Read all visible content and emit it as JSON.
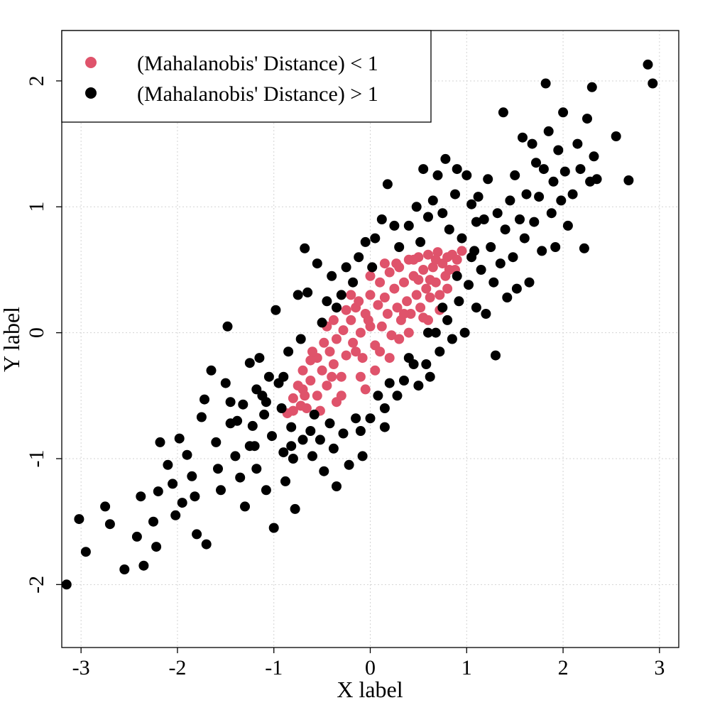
{
  "chart_data": {
    "type": "scatter",
    "xlabel": "X label",
    "ylabel": "Y label",
    "xlim": [
      -3.2,
      3.2
    ],
    "ylim": [
      -2.5,
      2.4
    ],
    "xticks": [
      -3,
      -2,
      -1,
      0,
      1,
      2,
      3
    ],
    "yticks": [
      -2,
      -1,
      0,
      1,
      2
    ],
    "xtick_labels": [
      "-3",
      "-2",
      "-1",
      "0",
      "1",
      "2",
      "3"
    ],
    "ytick_labels": [
      "-2",
      "-1",
      "0",
      "1",
      "2"
    ],
    "grid": true,
    "legend_position": "top-left",
    "correlation": 0.85,
    "threshold": 1,
    "series": [
      {
        "name": "(Mahalanobis' Distance) < 1",
        "color": "#DF536B",
        "points": [
          [
            -0.86,
            -0.64
          ],
          [
            -0.8,
            -0.52
          ],
          [
            -0.72,
            -0.58
          ],
          [
            -0.7,
            -0.45
          ],
          [
            -0.62,
            -0.38
          ],
          [
            -0.66,
            -0.6
          ],
          [
            -0.55,
            -0.5
          ],
          [
            -0.5,
            -0.3
          ],
          [
            -0.55,
            -0.2
          ],
          [
            -0.45,
            -0.42
          ],
          [
            -0.42,
            -0.15
          ],
          [
            -0.38,
            -0.25
          ],
          [
            -0.35,
            -0.05
          ],
          [
            -0.3,
            -0.35
          ],
          [
            -0.28,
            0.02
          ],
          [
            -0.25,
            -0.18
          ],
          [
            -0.2,
            0.1
          ],
          [
            -0.18,
            -0.08
          ],
          [
            -0.15,
            0.2
          ],
          [
            -0.1,
            0.0
          ],
          [
            -0.08,
            -0.2
          ],
          [
            -0.05,
            0.15
          ],
          [
            0.0,
            0.05
          ],
          [
            0.0,
            0.3
          ],
          [
            0.05,
            -0.1
          ],
          [
            0.08,
            0.22
          ],
          [
            0.1,
            0.4
          ],
          [
            0.12,
            0.05
          ],
          [
            0.15,
            0.28
          ],
          [
            0.18,
            0.15
          ],
          [
            0.2,
            0.48
          ],
          [
            0.22,
            -0.02
          ],
          [
            0.25,
            0.35
          ],
          [
            0.28,
            0.2
          ],
          [
            0.3,
            0.52
          ],
          [
            0.32,
            0.1
          ],
          [
            0.35,
            0.4
          ],
          [
            0.38,
            0.25
          ],
          [
            0.4,
            0.58
          ],
          [
            0.42,
            0.15
          ],
          [
            0.45,
            0.45
          ],
          [
            0.48,
            0.3
          ],
          [
            0.5,
            0.6
          ],
          [
            0.52,
            0.2
          ],
          [
            0.55,
            0.5
          ],
          [
            0.58,
            0.35
          ],
          [
            0.6,
            0.62
          ],
          [
            0.62,
            0.28
          ],
          [
            0.65,
            0.52
          ],
          [
            0.68,
            0.4
          ],
          [
            0.7,
            0.64
          ],
          [
            0.72,
            0.3
          ],
          [
            0.75,
            0.55
          ],
          [
            0.78,
            0.45
          ],
          [
            0.8,
            0.6
          ],
          [
            0.82,
            0.5
          ],
          [
            0.85,
            0.62
          ],
          [
            0.9,
            0.58
          ],
          [
            0.95,
            0.65
          ],
          [
            0.72,
            0.18
          ],
          [
            0.6,
            0.1
          ],
          [
            -0.62,
            -0.22
          ],
          [
            -0.7,
            -0.3
          ],
          [
            -0.75,
            -0.42
          ],
          [
            -0.3,
            -0.5
          ],
          [
            -0.1,
            -0.35
          ],
          [
            0.05,
            -0.3
          ],
          [
            0.2,
            -0.2
          ],
          [
            0.4,
            0.0
          ],
          [
            -0.45,
            0.05
          ],
          [
            -0.2,
            0.3
          ],
          [
            0.0,
            0.45
          ],
          [
            0.15,
            0.55
          ],
          [
            -0.6,
            -0.15
          ],
          [
            -0.35,
            -0.55
          ],
          [
            -0.52,
            -0.62
          ],
          [
            -0.25,
            0.18
          ],
          [
            0.3,
            -0.05
          ],
          [
            0.55,
            0.12
          ],
          [
            0.62,
            0.42
          ],
          [
            -0.12,
            0.25
          ],
          [
            -0.38,
            0.1
          ],
          [
            -0.05,
            -0.45
          ],
          [
            0.1,
            -0.15
          ],
          [
            0.27,
            0.55
          ],
          [
            0.45,
            0.58
          ],
          [
            0.5,
            0.42
          ],
          [
            -0.15,
            -0.15
          ],
          [
            -0.48,
            -0.08
          ],
          [
            -0.68,
            -0.5
          ],
          [
            -0.8,
            -0.62
          ],
          [
            -0.4,
            -0.35
          ],
          [
            -0.02,
            0.1
          ],
          [
            0.35,
            0.15
          ],
          [
            0.68,
            0.58
          ],
          [
            0.8,
            0.35
          ],
          [
            0.88,
            0.5
          ]
        ]
      },
      {
        "name": "(Mahalanobis' Distance) > 1",
        "color": "#000000",
        "points": [
          [
            -3.15,
            -2.0
          ],
          [
            -3.02,
            -1.48
          ],
          [
            -2.95,
            -1.74
          ],
          [
            -2.75,
            -1.38
          ],
          [
            -2.7,
            -1.52
          ],
          [
            -2.55,
            -1.88
          ],
          [
            -2.42,
            -1.62
          ],
          [
            -2.38,
            -1.3
          ],
          [
            -2.35,
            -1.85
          ],
          [
            -2.25,
            -1.5
          ],
          [
            -2.2,
            -1.26
          ],
          [
            -2.22,
            -1.7
          ],
          [
            -2.18,
            -0.87
          ],
          [
            -2.1,
            -1.05
          ],
          [
            -2.02,
            -1.45
          ],
          [
            -1.98,
            -0.84
          ],
          [
            -1.9,
            -0.97
          ],
          [
            -1.85,
            -1.14
          ],
          [
            -1.82,
            -1.3
          ],
          [
            -1.8,
            -1.6
          ],
          [
            -1.75,
            -0.67
          ],
          [
            -1.72,
            -0.53
          ],
          [
            -1.7,
            -1.68
          ],
          [
            -1.65,
            -0.3
          ],
          [
            -1.6,
            -0.87
          ],
          [
            -1.58,
            -1.08
          ],
          [
            -1.55,
            -1.25
          ],
          [
            -1.5,
            -0.4
          ],
          [
            -1.48,
            0.05
          ],
          [
            -1.45,
            -0.72
          ],
          [
            -1.4,
            -0.98
          ],
          [
            -1.35,
            -1.15
          ],
          [
            -1.32,
            -0.57
          ],
          [
            -1.3,
            -1.38
          ],
          [
            -1.25,
            -0.24
          ],
          [
            -1.22,
            -0.74
          ],
          [
            -1.2,
            -0.9
          ],
          [
            -1.18,
            -1.08
          ],
          [
            -1.15,
            -0.2
          ],
          [
            -1.12,
            -0.5
          ],
          [
            -1.1,
            -0.65
          ],
          [
            -1.08,
            -1.25
          ],
          [
            -1.05,
            -0.35
          ],
          [
            -1.02,
            -0.82
          ],
          [
            -1.0,
            -1.55
          ],
          [
            -0.98,
            0.18
          ],
          [
            -0.95,
            -0.4
          ],
          [
            -0.92,
            -0.6
          ],
          [
            -0.9,
            -0.95
          ],
          [
            -0.88,
            -1.18
          ],
          [
            -0.85,
            -0.15
          ],
          [
            -0.82,
            -0.75
          ],
          [
            -0.8,
            -1.0
          ],
          [
            -0.78,
            -1.4
          ],
          [
            -0.75,
            0.3
          ],
          [
            -0.72,
            -0.05
          ],
          [
            -0.7,
            -0.85
          ],
          [
            -0.68,
            0.67
          ],
          [
            -0.65,
            0.32
          ],
          [
            -0.62,
            -0.78
          ],
          [
            -0.6,
            -0.98
          ],
          [
            -0.55,
            0.55
          ],
          [
            -0.52,
            -0.85
          ],
          [
            -0.5,
            0.08
          ],
          [
            -0.48,
            -1.1
          ],
          [
            -0.45,
            0.25
          ],
          [
            -0.42,
            -0.72
          ],
          [
            -0.4,
            0.45
          ],
          [
            -0.38,
            -0.92
          ],
          [
            -0.35,
            -1.22
          ],
          [
            -0.3,
            0.3
          ],
          [
            -0.28,
            -0.8
          ],
          [
            -0.25,
            0.52
          ],
          [
            -0.22,
            -1.05
          ],
          [
            -0.18,
            0.4
          ],
          [
            -0.15,
            -0.68
          ],
          [
            -0.12,
            0.6
          ],
          [
            -0.08,
            -0.98
          ],
          [
            -0.05,
            0.72
          ],
          [
            0.0,
            -0.68
          ],
          [
            0.02,
            0.52
          ],
          [
            0.05,
            0.75
          ],
          [
            0.08,
            -0.5
          ],
          [
            0.12,
            0.9
          ],
          [
            0.15,
            -0.6
          ],
          [
            0.18,
            1.18
          ],
          [
            0.2,
            -0.4
          ],
          [
            0.25,
            0.85
          ],
          [
            0.3,
            0.68
          ],
          [
            0.35,
            -0.38
          ],
          [
            0.4,
            0.85
          ],
          [
            0.45,
            -0.25
          ],
          [
            0.48,
            1.0
          ],
          [
            0.5,
            -0.42
          ],
          [
            0.52,
            0.72
          ],
          [
            0.55,
            1.3
          ],
          [
            0.58,
            -0.25
          ],
          [
            0.6,
            0.92
          ],
          [
            0.62,
            -0.35
          ],
          [
            0.65,
            1.05
          ],
          [
            0.68,
            0.0
          ],
          [
            0.7,
            1.25
          ],
          [
            0.72,
            -0.15
          ],
          [
            0.75,
            0.95
          ],
          [
            0.78,
            1.38
          ],
          [
            0.8,
            0.1
          ],
          [
            0.82,
            0.82
          ],
          [
            0.85,
            -0.05
          ],
          [
            0.88,
            1.1
          ],
          [
            0.9,
            1.3
          ],
          [
            0.92,
            0.25
          ],
          [
            0.95,
            0.75
          ],
          [
            0.98,
            0.0
          ],
          [
            1.0,
            1.25
          ],
          [
            1.02,
            0.38
          ],
          [
            1.05,
            1.02
          ],
          [
            1.08,
            0.65
          ],
          [
            1.1,
            0.2
          ],
          [
            1.12,
            1.08
          ],
          [
            1.15,
            0.5
          ],
          [
            1.18,
            0.9
          ],
          [
            1.2,
            0.15
          ],
          [
            1.22,
            1.22
          ],
          [
            1.25,
            0.68
          ],
          [
            1.28,
            0.4
          ],
          [
            1.3,
            -0.18
          ],
          [
            1.32,
            0.95
          ],
          [
            1.35,
            0.55
          ],
          [
            1.38,
            1.75
          ],
          [
            1.4,
            0.82
          ],
          [
            1.42,
            0.28
          ],
          [
            1.45,
            1.05
          ],
          [
            1.48,
            0.6
          ],
          [
            1.5,
            1.25
          ],
          [
            1.52,
            0.35
          ],
          [
            1.55,
            0.9
          ],
          [
            1.58,
            1.55
          ],
          [
            1.6,
            0.75
          ],
          [
            1.62,
            1.1
          ],
          [
            1.65,
            0.4
          ],
          [
            1.68,
            1.5
          ],
          [
            1.7,
            0.88
          ],
          [
            1.72,
            1.35
          ],
          [
            1.75,
            1.08
          ],
          [
            1.78,
            0.65
          ],
          [
            1.8,
            1.3
          ],
          [
            1.82,
            1.98
          ],
          [
            1.85,
            1.6
          ],
          [
            1.88,
            0.95
          ],
          [
            1.9,
            1.2
          ],
          [
            1.92,
            0.68
          ],
          [
            1.95,
            1.45
          ],
          [
            1.98,
            1.05
          ],
          [
            2.0,
            1.75
          ],
          [
            2.02,
            1.28
          ],
          [
            2.05,
            0.85
          ],
          [
            2.1,
            1.1
          ],
          [
            2.15,
            1.5
          ],
          [
            2.18,
            1.3
          ],
          [
            2.22,
            0.67
          ],
          [
            2.25,
            1.7
          ],
          [
            2.28,
            1.2
          ],
          [
            2.3,
            1.95
          ],
          [
            2.32,
            1.4
          ],
          [
            2.35,
            1.22
          ],
          [
            2.55,
            1.56
          ],
          [
            2.68,
            1.21
          ],
          [
            2.88,
            2.13
          ],
          [
            2.93,
            1.98
          ],
          [
            -0.9,
            -0.35
          ],
          [
            -1.08,
            -0.55
          ],
          [
            -1.25,
            -0.9
          ],
          [
            -1.45,
            -0.55
          ],
          [
            -0.35,
            0.2
          ],
          [
            0.15,
            -0.75
          ],
          [
            0.28,
            -0.5
          ],
          [
            -0.1,
            -0.78
          ],
          [
            0.4,
            -0.2
          ],
          [
            0.6,
            0.0
          ],
          [
            0.75,
            0.2
          ],
          [
            0.9,
            0.45
          ],
          [
            1.05,
            0.6
          ],
          [
            1.1,
            0.88
          ],
          [
            -2.05,
            -1.2
          ],
          [
            -1.95,
            -1.35
          ],
          [
            -1.38,
            -0.7
          ],
          [
            -1.18,
            -0.45
          ],
          [
            -0.58,
            -0.65
          ],
          [
            -0.82,
            -0.9
          ]
        ]
      }
    ]
  }
}
